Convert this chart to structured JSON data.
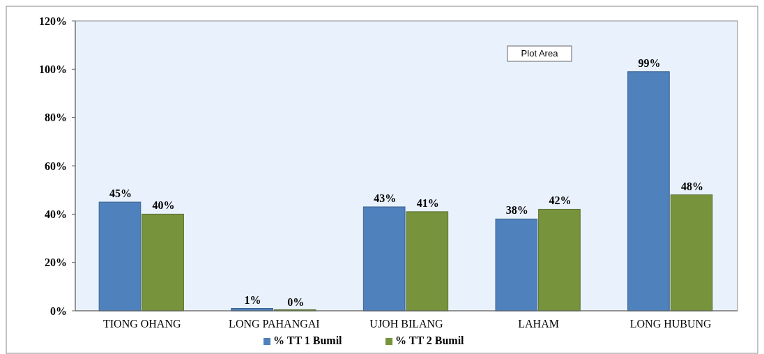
{
  "chart_data": {
    "type": "bar",
    "categories": [
      "TIONG OHANG",
      "LONG PAHANGAI",
      "UJOH BILANG",
      "LAHAM",
      "LONG HUBUNG"
    ],
    "series": [
      {
        "name": "% TT 1 Bumil",
        "color": "#4f81bd",
        "values": [
          45,
          1,
          43,
          38,
          99
        ],
        "value_labels": [
          "45%",
          "1%",
          "43%",
          "38%",
          "99%"
        ]
      },
      {
        "name": "% TT 2 Bumil",
        "color": "#77933c",
        "values": [
          40,
          0,
          41,
          42,
          48
        ],
        "value_labels": [
          "40%",
          "0%",
          "41%",
          "42%",
          "48%"
        ]
      }
    ],
    "ylim": [
      0,
      120
    ],
    "yticks": [
      {
        "value": 0,
        "label": "0%"
      },
      {
        "value": 20,
        "label": "20%"
      },
      {
        "value": 40,
        "label": "40%"
      },
      {
        "value": 60,
        "label": "60%"
      },
      {
        "value": 80,
        "label": "80%"
      },
      {
        "value": 100,
        "label": "100%"
      },
      {
        "value": 120,
        "label": "120%"
      }
    ],
    "legend": "bottom",
    "annotations": [
      "Plot Area"
    ]
  }
}
